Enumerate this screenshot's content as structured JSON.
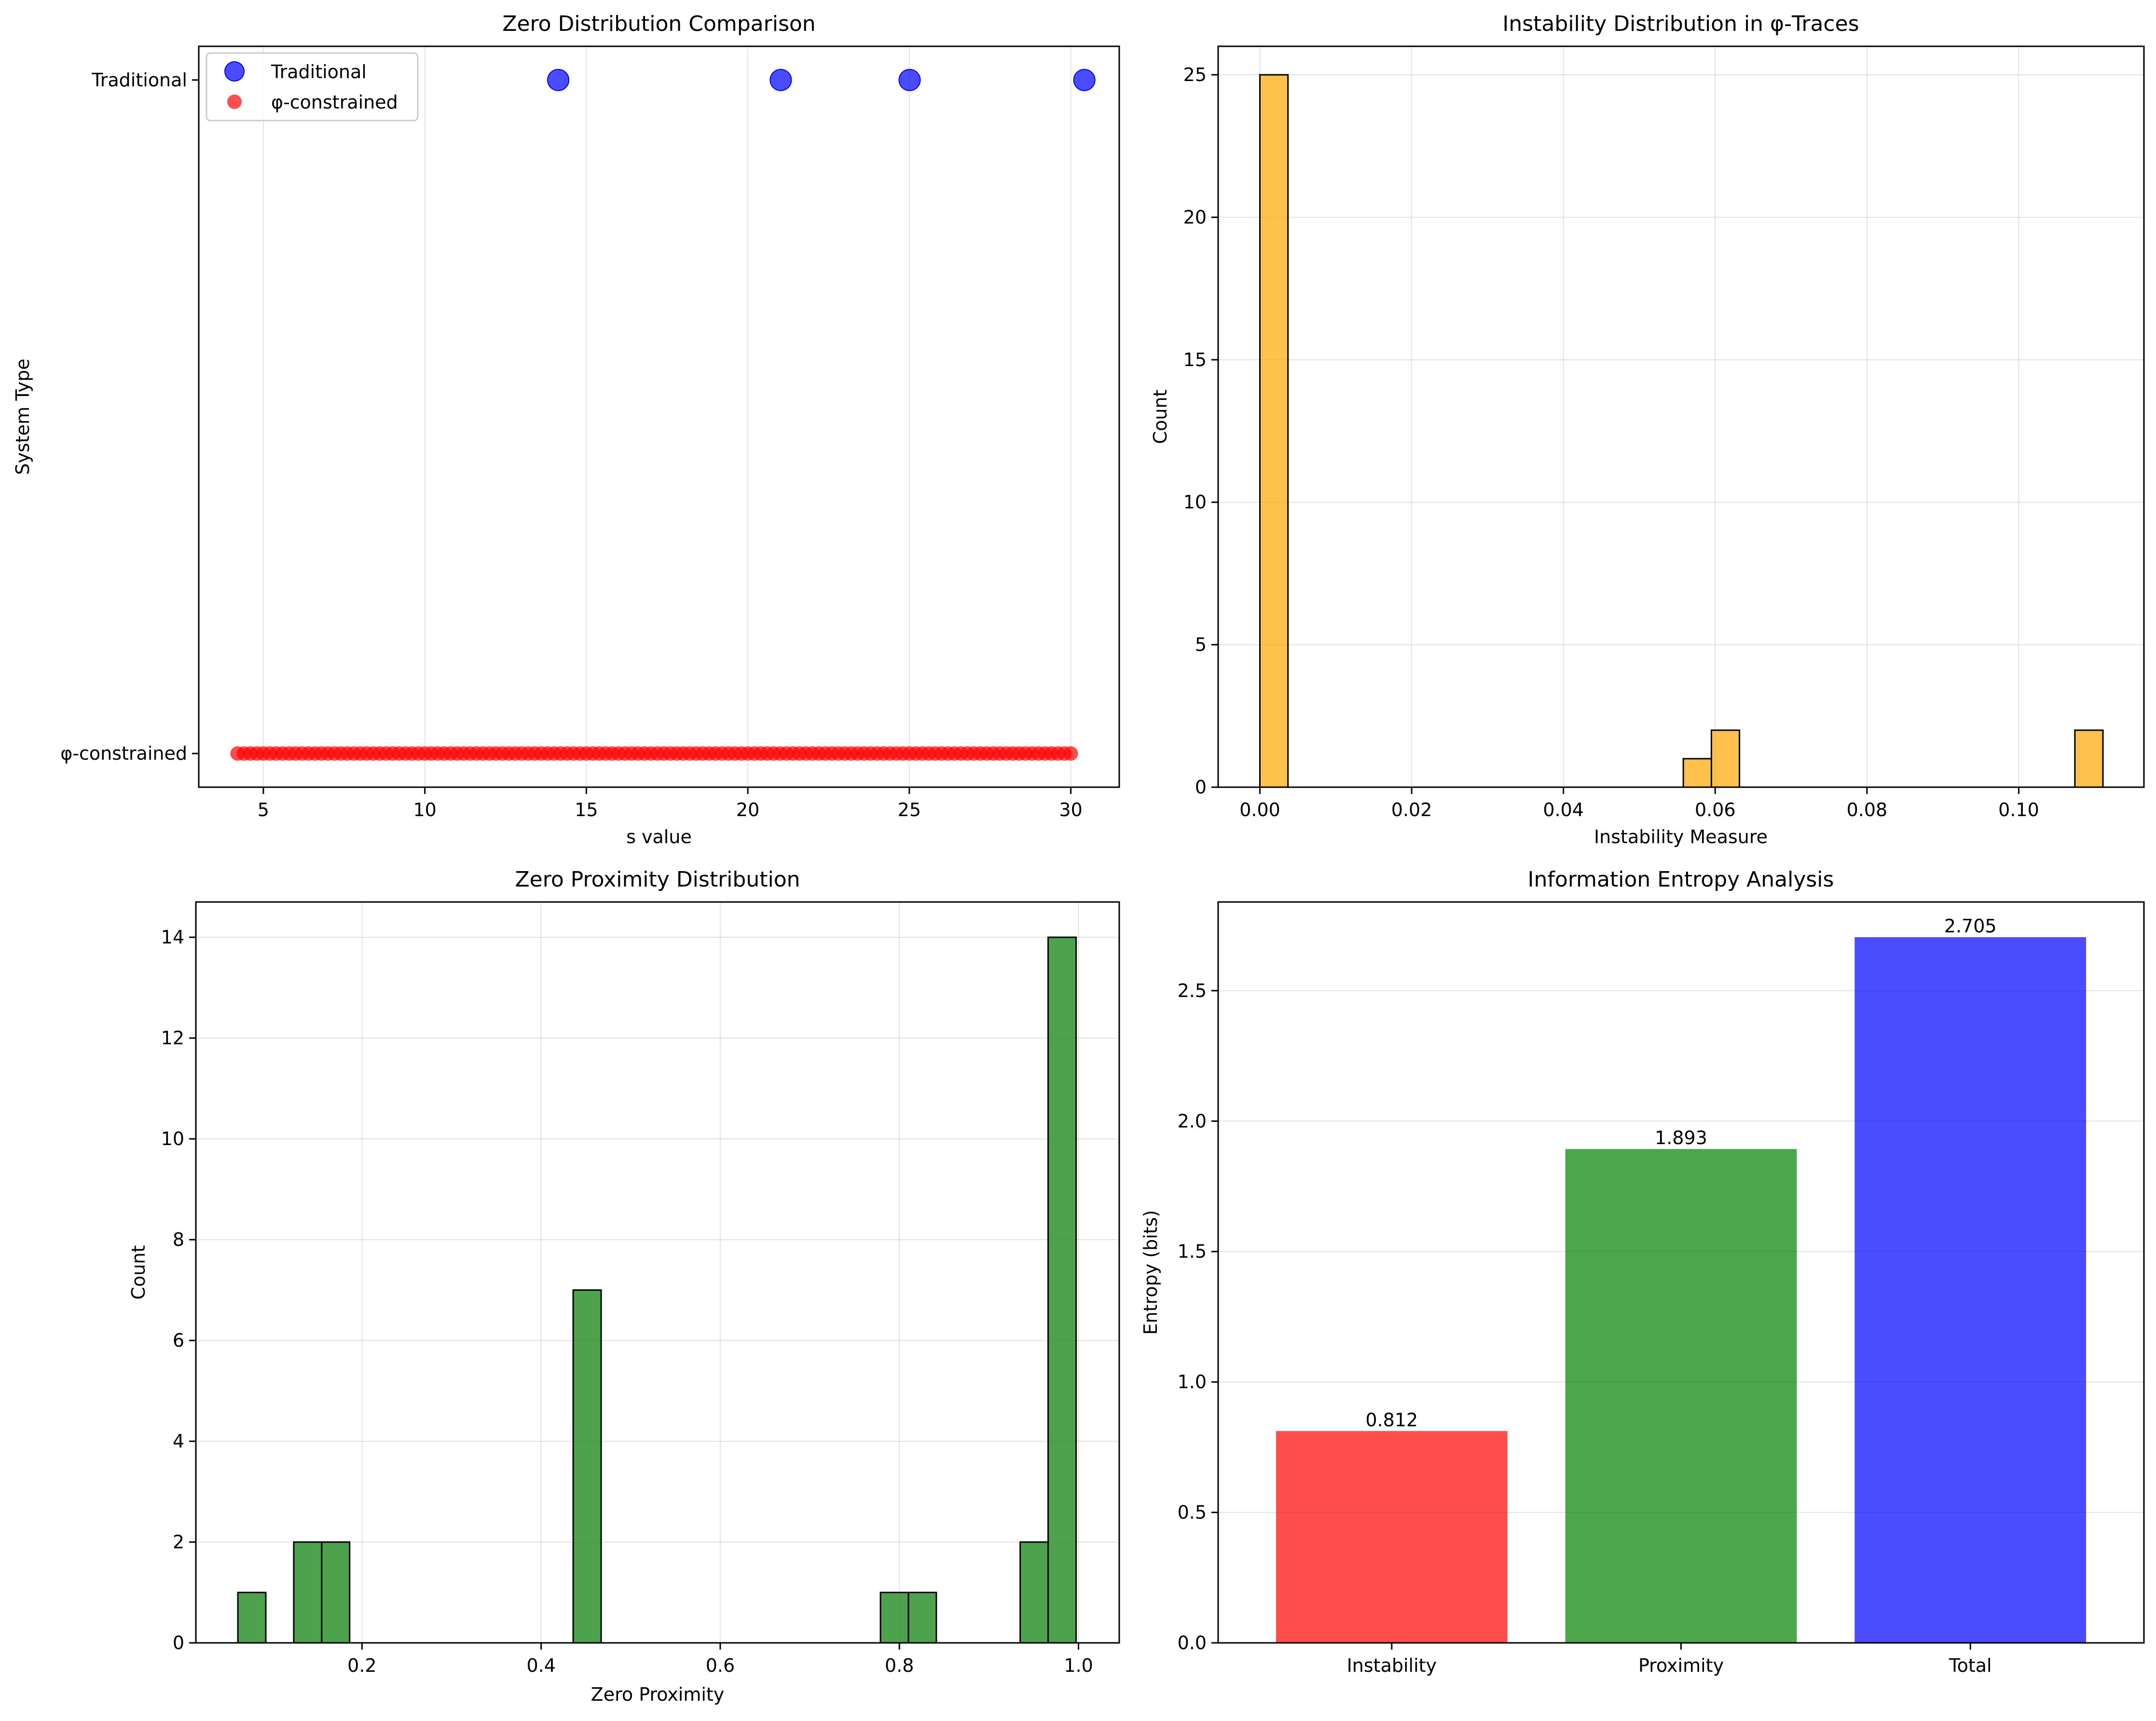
{
  "chart_data": [
    {
      "type": "scatter",
      "title": "Zero Distribution Comparison",
      "xlabel": "s value",
      "ylabel": "System Type",
      "xlim": [
        3.0,
        31.5
      ],
      "ylim": [
        -0.05,
        1.05
      ],
      "x_ticks": [
        5,
        10,
        15,
        20,
        25,
        30
      ],
      "y_categories": [
        "φ-constrained",
        "Traditional"
      ],
      "grid": "x",
      "legend": "top-left",
      "series": [
        {
          "name": "Traditional",
          "color": "#0000ff",
          "y": 1,
          "x": [
            14.13,
            21.02,
            25.01,
            30.42
          ]
        },
        {
          "name": "φ-constrained",
          "color": "#ff0000",
          "y": 0,
          "x_start": 4.2,
          "x_end": 30.0,
          "count": 130
        }
      ]
    },
    {
      "type": "bar",
      "subtype": "histogram",
      "title": "Instability Distribution in φ-Traces",
      "xlabel": "Instability Measure",
      "ylabel": "Count",
      "color": "#ffa500",
      "xlim": [
        -0.0055,
        0.1165
      ],
      "ylim": [
        0,
        26
      ],
      "x_ticks": [
        "0.00",
        "0.02",
        "0.04",
        "0.06",
        "0.08",
        "0.10"
      ],
      "y_ticks": [
        0,
        5,
        10,
        15,
        20,
        25
      ],
      "grid": true,
      "bins": [
        {
          "x0": 0.0,
          "x1": 0.0037,
          "value": 25
        },
        {
          "x0": 0.0558,
          "x1": 0.0595,
          "value": 1
        },
        {
          "x0": 0.0595,
          "x1": 0.0632,
          "value": 2
        },
        {
          "x0": 0.1074,
          "x1": 0.1111,
          "value": 2
        }
      ]
    },
    {
      "type": "bar",
      "subtype": "histogram",
      "title": "Zero Proximity Distribution",
      "xlabel": "Zero Proximity",
      "ylabel": "Count",
      "color": "#228b22",
      "xlim": [
        0.0145,
        1.0455
      ],
      "ylim": [
        0,
        14.7
      ],
      "x_ticks": [
        "0.2",
        "0.4",
        "0.6",
        "0.8",
        "1.0"
      ],
      "y_ticks": [
        0,
        2,
        4,
        6,
        8,
        10,
        12,
        14
      ],
      "grid": true,
      "bins": [
        {
          "x0": 0.0614,
          "x1": 0.0926,
          "value": 1
        },
        {
          "x0": 0.1238,
          "x1": 0.155,
          "value": 2
        },
        {
          "x0": 0.155,
          "x1": 0.1862,
          "value": 2
        },
        {
          "x0": 0.4358,
          "x1": 0.467,
          "value": 7
        },
        {
          "x0": 0.7789,
          "x1": 0.8101,
          "value": 1
        },
        {
          "x0": 0.8101,
          "x1": 0.8413,
          "value": 1
        },
        {
          "x0": 0.9349,
          "x1": 0.9661,
          "value": 2
        },
        {
          "x0": 0.9661,
          "x1": 0.9973,
          "value": 14
        }
      ]
    },
    {
      "type": "bar",
      "title": "Information Entropy Analysis",
      "xlabel": "",
      "ylabel": "Entropy (bits)",
      "ylim": [
        0,
        2.84
      ],
      "y_ticks": [
        "0.0",
        "0.5",
        "1.0",
        "1.5",
        "2.0",
        "2.5"
      ],
      "grid": "y",
      "categories": [
        "Instability",
        "Proximity",
        "Total"
      ],
      "values": [
        0.812,
        1.893,
        2.705
      ],
      "value_labels": [
        "0.812",
        "1.893",
        "2.705"
      ],
      "colors": [
        "#ff0000",
        "#008000",
        "#0000ff"
      ]
    }
  ]
}
